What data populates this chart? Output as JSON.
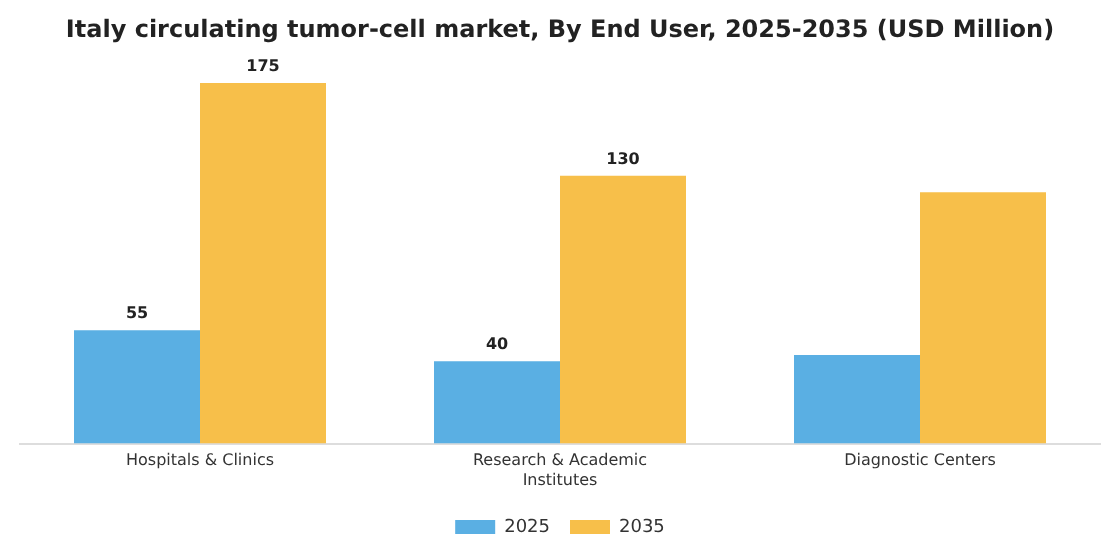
{
  "chart_data": {
    "type": "bar",
    "title": "Italy circulating tumor-cell market, By End User, 2025-2035 (USD Million)",
    "categories": [
      "Hospitals & Clinics",
      "Research & Academic Institutes",
      "Diagnostic Centers"
    ],
    "series": [
      {
        "name": "2025",
        "color": "#5aafe3",
        "values": [
          55,
          40,
          43
        ],
        "value_labels": [
          "55",
          "40",
          null
        ]
      },
      {
        "name": "2035",
        "color": "#f7bf4a",
        "values": [
          175,
          130,
          122
        ],
        "value_labels": [
          "175",
          "130",
          null
        ]
      }
    ],
    "grid": false,
    "legend": "bottom",
    "tick_labels": "x"
  }
}
